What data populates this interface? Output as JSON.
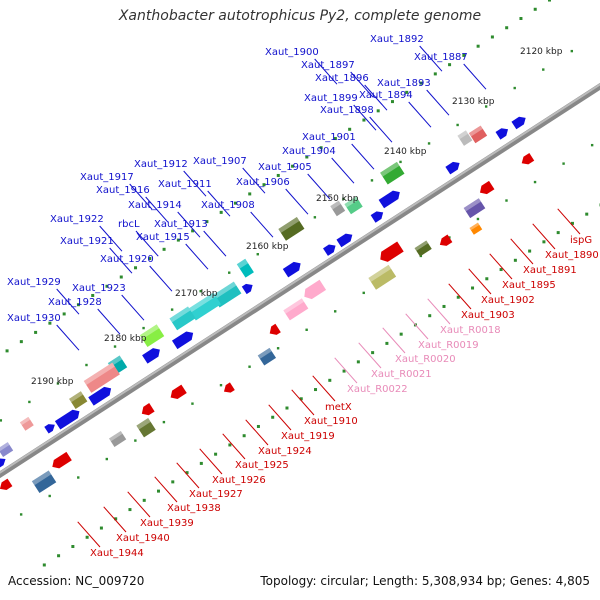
{
  "header": {
    "title": "Xanthobacter autotrophicus Py2, complete genome"
  },
  "footer": {
    "accession": "Accession: NC_009720",
    "summary": "Topology: circular; Length: 5,308,934 bp; Genes: 4,805"
  },
  "colors": {
    "forward_label": "#1010cc",
    "reverse_label": "#cc0000",
    "rna_label": "#e88ab8",
    "backbone": "#666666"
  },
  "scale_labels": [
    "2120 kbp",
    "2130 kbp",
    "2140 kbp",
    "2150 kbp",
    "2160 kbp",
    "2170 kbp",
    "2180 kbp",
    "2190 kbp"
  ],
  "forward_genes": [
    "Xaut_1892",
    "Xaut_1900",
    "Xaut_1887",
    "Xaut_1897",
    "Xaut_1896",
    "Xaut_1893",
    "Xaut_1899",
    "Xaut_1894",
    "Xaut_1898",
    "Xaut_1901",
    "Xaut_1904",
    "Xaut_1912",
    "Xaut_1907",
    "Xaut_1905",
    "Xaut_1917",
    "Xaut_1911",
    "Xaut_1906",
    "Xaut_1916",
    "Xaut_1914",
    "Xaut_1908",
    "rbcL",
    "Xaut_1913",
    "Xaut_1922",
    "Xaut_1915",
    "Xaut_1921",
    "Xaut_1920",
    "Xaut_1929",
    "Xaut_1923",
    "Xaut_1928",
    "Xaut_1930"
  ],
  "reverse_genes": [
    "ispG",
    "Xaut_1890",
    "Xaut_1891",
    "Xaut_1895",
    "Xaut_1902",
    "Xaut_1903",
    "metX",
    "Xaut_1910",
    "Xaut_1919",
    "Xaut_1924",
    "Xaut_1925",
    "Xaut_1926",
    "Xaut_1927",
    "Xaut_1938",
    "Xaut_1939",
    "Xaut_1940",
    "Xaut_1944"
  ],
  "rna_genes": [
    "Xaut_R0018",
    "Xaut_R0019",
    "Xaut_R0020",
    "Xaut_R0021",
    "Xaut_R0022"
  ]
}
